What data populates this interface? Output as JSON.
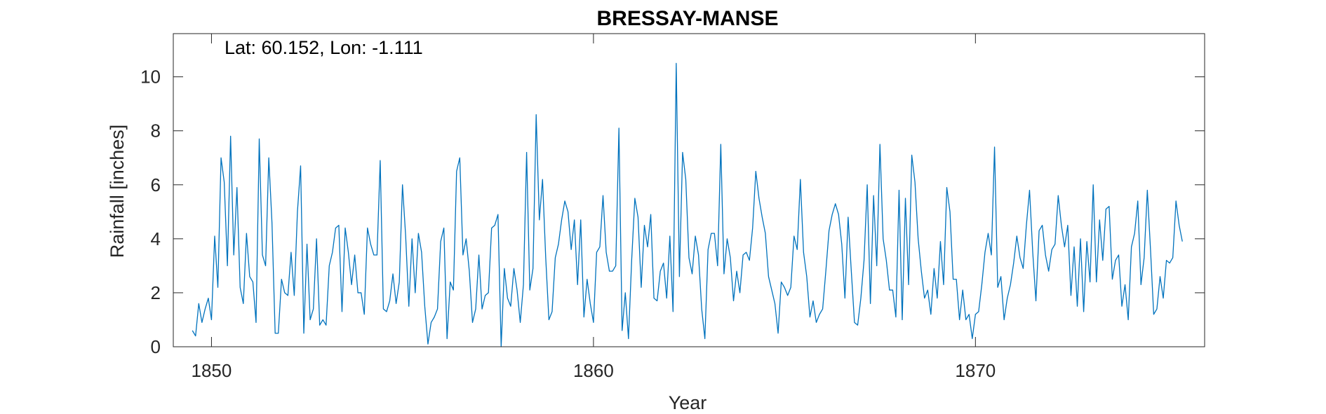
{
  "chart_data": {
    "type": "line",
    "title": "BRESSAY-MANSE",
    "annotation": "Lat: 60.152, Lon: -1.111",
    "xlabel": "Year",
    "ylabel": "Rainfall [inches]",
    "xlim": [
      1849,
      1876
    ],
    "ylim": [
      0,
      11.6
    ],
    "x_ticks": [
      1850,
      1860,
      1870
    ],
    "x_tick_labels": [
      "1850",
      "1860",
      "1870"
    ],
    "y_ticks": [
      0,
      2,
      4,
      6,
      8,
      10
    ],
    "y_tick_labels": [
      "0",
      "2",
      "4",
      "6",
      "8",
      "10"
    ],
    "grid": false,
    "line_color": "#0072BD",
    "series": [
      {
        "x_start": 1849.5,
        "x_step": 0.0833333,
        "values": [
          0.6,
          0.4,
          1.6,
          0.9,
          1.4,
          1.8,
          1.0,
          4.1,
          2.2,
          7.0,
          6.1,
          3.0,
          7.8,
          3.4,
          5.9,
          2.2,
          1.6,
          4.2,
          2.6,
          2.4,
          0.9,
          7.7,
          3.4,
          3.0,
          7.0,
          4.6,
          0.5,
          0.5,
          2.5,
          2.0,
          1.9,
          3.5,
          1.9,
          5.0,
          6.7,
          0.5,
          3.8,
          1.0,
          1.4,
          4.0,
          0.8,
          1.0,
          0.8,
          3.0,
          3.5,
          4.4,
          4.5,
          1.3,
          4.4,
          3.5,
          2.3,
          3.4,
          2.0,
          2.0,
          1.2,
          4.4,
          3.8,
          3.4,
          3.4,
          6.9,
          1.4,
          1.3,
          1.7,
          2.7,
          1.6,
          2.4,
          6.0,
          4.1,
          1.5,
          4.0,
          2.0,
          4.2,
          3.5,
          1.5,
          0.1,
          0.9,
          1.1,
          1.4,
          3.9,
          4.4,
          0.3,
          2.4,
          2.1,
          6.5,
          7.0,
          3.4,
          4.0,
          2.8,
          0.9,
          1.4,
          3.4,
          1.4,
          1.9,
          2.0,
          4.4,
          4.5,
          4.9,
          0.0,
          2.9,
          1.8,
          1.5,
          2.9,
          2.1,
          0.9,
          2.3,
          7.2,
          2.1,
          2.9,
          8.6,
          4.7,
          6.2,
          3.3,
          1.0,
          1.3,
          3.3,
          3.8,
          4.7,
          5.4,
          5.0,
          3.6,
          4.7,
          2.3,
          4.7,
          1.1,
          2.5,
          1.6,
          0.9,
          3.5,
          3.7,
          5.6,
          3.5,
          2.8,
          2.8,
          3.0,
          8.1,
          0.6,
          2.0,
          0.3,
          3.2,
          5.5,
          4.8,
          2.2,
          4.5,
          3.7,
          4.9,
          1.8,
          1.7,
          2.8,
          3.1,
          1.8,
          4.1,
          1.3,
          10.5,
          2.6,
          7.2,
          6.2,
          3.3,
          2.7,
          4.1,
          3.4,
          1.4,
          0.3,
          3.6,
          4.2,
          4.2,
          3.0,
          7.5,
          2.7,
          4.0,
          3.3,
          1.7,
          2.8,
          2.0,
          3.4,
          3.5,
          3.2,
          4.4,
          6.5,
          5.5,
          4.8,
          4.2,
          2.6,
          2.1,
          1.6,
          0.5,
          2.4,
          2.2,
          1.9,
          2.2,
          4.1,
          3.6,
          6.2,
          3.5,
          2.6,
          1.1,
          1.7,
          0.9,
          1.2,
          1.4,
          2.8,
          4.3,
          4.9,
          5.3,
          4.9,
          3.8,
          1.8,
          4.8,
          2.8,
          0.9,
          0.8,
          1.8,
          3.2,
          6.0,
          1.6,
          5.6,
          3.0,
          7.5,
          4.0,
          3.2,
          2.1,
          2.1,
          1.1,
          5.8,
          1.0,
          5.5,
          2.3,
          7.1,
          6.1,
          4.0,
          2.8,
          1.8,
          2.1,
          1.2,
          2.9,
          1.8,
          3.9,
          2.3,
          5.9,
          5.0,
          2.5,
          2.5,
          1.0,
          2.1,
          1.0,
          1.2,
          0.3,
          1.2,
          1.3,
          2.3,
          3.5,
          4.2,
          3.4,
          7.4,
          2.2,
          2.6,
          1.0,
          1.8,
          2.3,
          3.1,
          4.1,
          3.3,
          2.9,
          4.5,
          5.8,
          3.5,
          1.7,
          4.3,
          4.5,
          3.4,
          2.8,
          3.6,
          3.8,
          5.6,
          4.5,
          3.7,
          4.5,
          1.9,
          3.7,
          1.5,
          4.0,
          1.3,
          3.9,
          2.4,
          6.0,
          2.4,
          4.7,
          3.2,
          5.1,
          5.2,
          2.5,
          3.2,
          3.4,
          1.5,
          2.3,
          1.0,
          3.7,
          4.2,
          5.4,
          2.3,
          3.3,
          5.8,
          3.6,
          1.2,
          1.4,
          2.6,
          1.8,
          3.2,
          3.1,
          3.3,
          5.4,
          4.5,
          3.9
        ]
      }
    ]
  }
}
